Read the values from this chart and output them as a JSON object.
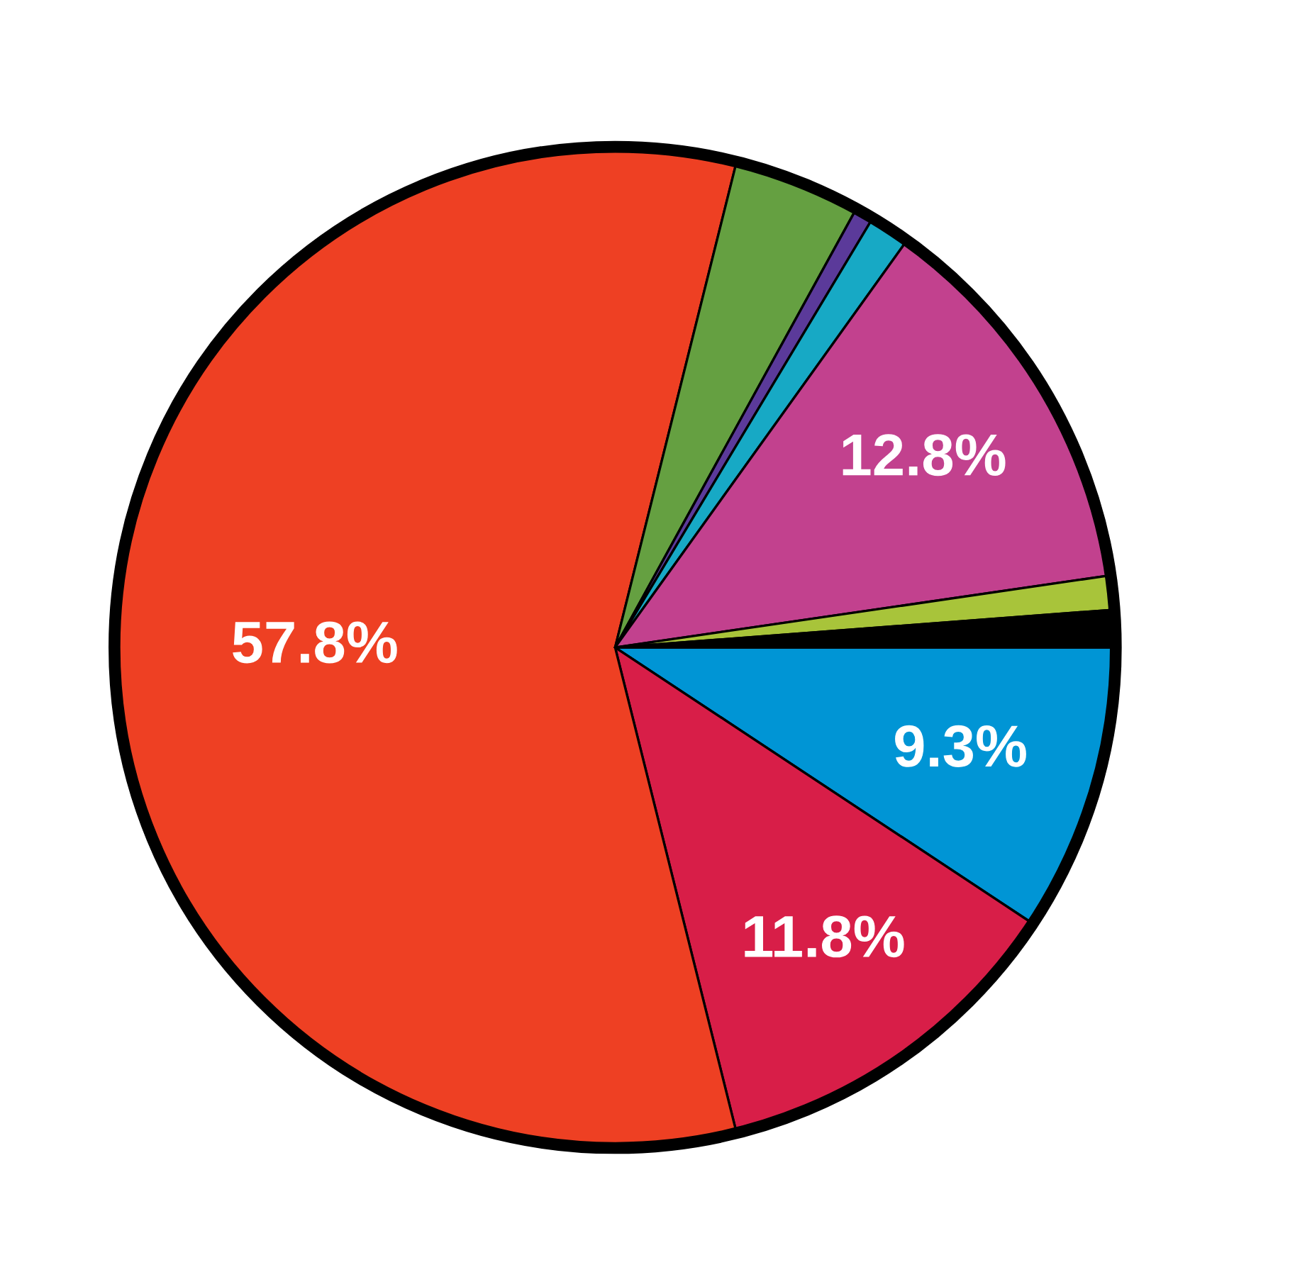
{
  "chart_data": {
    "type": "pie",
    "categories": [
      null,
      null,
      null,
      null,
      null,
      null,
      null,
      null,
      null
    ],
    "values": [
      9.3,
      11.8,
      57.8,
      4.1,
      0.6,
      1.3,
      12.8,
      1.1,
      1.2
    ],
    "colors": [
      "#0095d5",
      "#d81e48",
      "#ee4023",
      "#65a041",
      "#5b3a9a",
      "#17a9c5",
      "#c2418e",
      "#a8c43a",
      "#000000"
    ],
    "value_labels": [
      "9.3%",
      "11.8%",
      "57.8%",
      null,
      null,
      null,
      "12.8%",
      null,
      null
    ]
  }
}
